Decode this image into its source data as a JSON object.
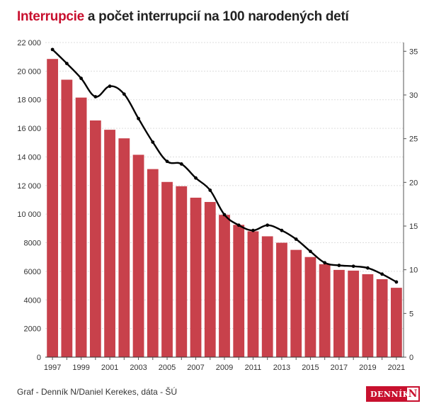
{
  "title": {
    "accent": "Interrupcie",
    "rest": "a počet interrupcií na 100 narodených detí"
  },
  "footer": {
    "credit": "Graf - Denník N/Daniel Kerekes, dáta - ŠÚ",
    "logo_text": "DENNÍK",
    "logo_mark": "N"
  },
  "colors": {
    "bar": "#c8414b",
    "line": "#000000",
    "accent": "#c8102e"
  },
  "chart_data": {
    "type": "bar",
    "title": "Interrupcie a počet interrupcií na 100 narodených detí",
    "categories": [
      "1997",
      "1998",
      "1999",
      "2000",
      "2001",
      "2002",
      "2003",
      "2004",
      "2005",
      "2006",
      "2007",
      "2008",
      "2009",
      "2010",
      "2011",
      "2012",
      "2013",
      "2014",
      "2015",
      "2016",
      "2017",
      "2018",
      "2019",
      "2020",
      "2021"
    ],
    "x_tick_labels": [
      "1997",
      "1999",
      "2001",
      "2003",
      "2005",
      "2007",
      "2009",
      "2011",
      "2013",
      "2015",
      "2017",
      "2019",
      "2021"
    ],
    "series": [
      {
        "name": "Interrupcie",
        "type": "bar",
        "axis": "left",
        "values": [
          20850,
          19400,
          18150,
          16550,
          15900,
          15300,
          14150,
          13150,
          12250,
          11950,
          11150,
          10850,
          9950,
          9250,
          8800,
          8450,
          8000,
          7500,
          7000,
          6500,
          6100,
          6050,
          5800,
          5450,
          4850
        ]
      },
      {
        "name": "počet interrupcií na 100 narodených detí",
        "type": "line",
        "axis": "right",
        "values": [
          35.2,
          33.6,
          31.9,
          29.8,
          31.0,
          30.1,
          27.3,
          24.6,
          22.4,
          22.1,
          20.5,
          19.1,
          16.3,
          15.1,
          14.5,
          15.1,
          14.5,
          13.5,
          12.1,
          10.8,
          10.5,
          10.4,
          10.2,
          9.5,
          8.6
        ]
      }
    ],
    "y_left": {
      "min": 0,
      "max": 22000,
      "step": 2000,
      "tick_labels": [
        "0",
        "2000",
        "4000",
        "6000",
        "8000",
        "10 000",
        "12 000",
        "14 000",
        "16 000",
        "18 000",
        "20 000",
        "22 000"
      ]
    },
    "y_right": {
      "min": 0,
      "max": 36,
      "step": 5,
      "tick_labels": [
        "0",
        "5",
        "10",
        "15",
        "20",
        "25",
        "30",
        "35"
      ]
    },
    "grid": true,
    "legend": false
  }
}
